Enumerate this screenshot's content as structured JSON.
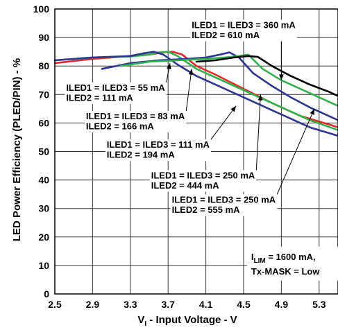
{
  "chart_data": {
    "type": "line",
    "xlabel_main": "V",
    "xlabel_sub": "I",
    "xlabel_rest": " - Input Voltage - V",
    "ylabel": "LED Power Efficiency (PLED/PIN) - %",
    "xlim": [
      2.5,
      5.5
    ],
    "ylim": [
      0,
      100
    ],
    "xticks": [
      2.5,
      2.9,
      3.3,
      3.7,
      4.1,
      4.5,
      4.9,
      5.3
    ],
    "xtick_labels": [
      "2.5",
      "2.9",
      "3.3",
      "3.7",
      "4.1",
      "4.5",
      "4.9",
      "5.3"
    ],
    "yticks": [
      0,
      10,
      20,
      30,
      40,
      50,
      60,
      70,
      80,
      90,
      100
    ],
    "ytick_labels": [
      "0",
      "10",
      "20",
      "30",
      "40",
      "50",
      "60",
      "70",
      "80",
      "90",
      "100"
    ],
    "grid": true,
    "series": [
      {
        "color": "#e8262a",
        "x": [
          2.5,
          2.9,
          3.3,
          3.5,
          3.65,
          3.75,
          3.85,
          4.0,
          4.2,
          4.5,
          4.8,
          5.1,
          5.3,
          5.5
        ],
        "y": [
          81,
          82.5,
          83.5,
          84,
          84.8,
          85,
          84,
          80,
          77,
          72,
          67,
          62.5,
          60.5,
          58.5
        ]
      },
      {
        "color": "#2db24a",
        "x": [
          2.5,
          2.9,
          3.3,
          3.5,
          3.6,
          3.7,
          3.8,
          4.0,
          4.3,
          4.6,
          4.9,
          5.2,
          5.5
        ],
        "y": [
          82,
          83,
          83.3,
          84,
          84.8,
          85,
          83.5,
          79,
          74.5,
          70,
          65.5,
          61,
          57.5
        ]
      },
      {
        "color": "#2c3593",
        "x": [
          2.5,
          2.9,
          3.3,
          3.45,
          3.55,
          3.65,
          3.8,
          4.0,
          4.3,
          4.6,
          4.9,
          5.2,
          5.5
        ],
        "y": [
          82,
          83,
          83.5,
          84.5,
          85,
          84,
          80.5,
          76.5,
          72,
          67.5,
          63,
          58.5,
          55.5
        ]
      },
      {
        "color": "#2c3593",
        "x": [
          3.0,
          3.3,
          3.6,
          3.9,
          4.1,
          4.25,
          4.35,
          4.45,
          4.6,
          4.8,
          5.0,
          5.2,
          5.5
        ],
        "y": [
          79,
          81,
          82,
          82.5,
          83,
          84,
          84.8,
          83,
          77.5,
          73,
          69,
          65.5,
          61
        ]
      },
      {
        "color": "#2db24a",
        "x": [
          3.2,
          3.5,
          3.8,
          4.1,
          4.3,
          4.45,
          4.55,
          4.7,
          4.9,
          5.1,
          5.3,
          5.5
        ],
        "y": [
          80,
          81.5,
          82,
          82.5,
          83,
          83.5,
          84,
          79,
          75,
          72,
          69,
          66
        ]
      },
      {
        "color": "#000000",
        "x": [
          4.0,
          4.2,
          4.4,
          4.55,
          4.65,
          4.8,
          5.0,
          5.2,
          5.4,
          5.5
        ],
        "y": [
          81.5,
          82,
          83,
          83.5,
          83.2,
          80,
          76.5,
          73.5,
          71,
          69.5
        ]
      }
    ],
    "annotations": [
      {
        "lines": [
          "ILED1 = ILED3 = 360 mA",
          "ILED2 = 610 mA"
        ],
        "text_pos": [
          3.95,
          93.3
        ],
        "target": [
          4.9,
          75
        ]
      },
      {
        "lines": [
          "ILED1 = ILED3 = 55 mA",
          "ILED2 = 111 mA"
        ],
        "text_pos": [
          2.62,
          71.3
        ],
        "target": [
          3.72,
          81
        ]
      },
      {
        "lines": [
          "ILED1 = ILED3 = 83 mA",
          "ILED2 = 166 mA"
        ],
        "text_pos": [
          2.83,
          61.3
        ],
        "target": [
          3.95,
          79
        ]
      },
      {
        "lines": [
          "ILED1 = ILED3 = 111 mA",
          "ILED2 = 194 mA"
        ],
        "text_pos": [
          3.05,
          51.3
        ],
        "target": [
          4.42,
          66
        ]
      },
      {
        "lines": [
          "ILED1 = ILED3 = 250 mA",
          "ILED2 = 444 mA"
        ],
        "text_pos": [
          3.52,
          40.5
        ],
        "target": [
          4.68,
          70
        ]
      },
      {
        "lines": [
          "ILED1 = ILED3 = 250 mA",
          "ILED2 = 555 mA"
        ],
        "text_pos": [
          3.74,
          32
        ],
        "target": [
          5.25,
          65
        ]
      }
    ],
    "note": {
      "sym": "I",
      "sub": "LIM",
      "line1_rest": " = 1600 mA,",
      "line2": "Tx-MASK = Low",
      "text_pos": [
        4.58,
        9.3
      ]
    }
  }
}
